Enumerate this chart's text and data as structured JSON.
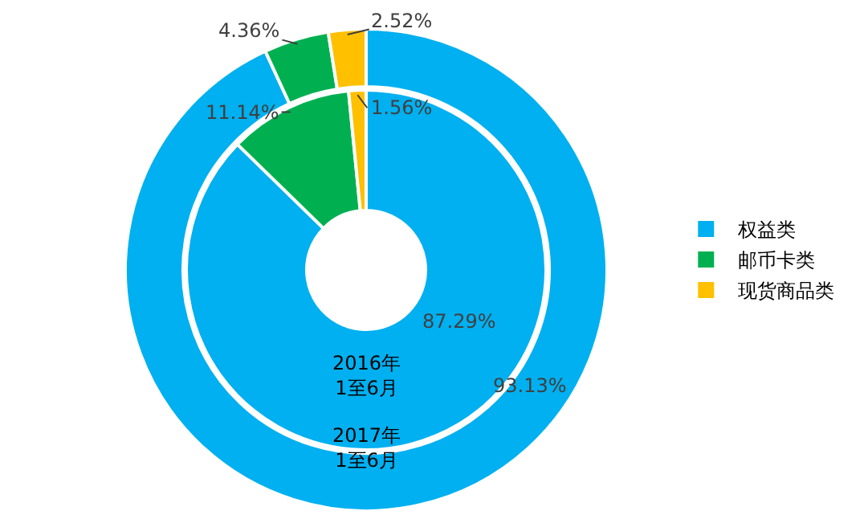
{
  "chart_data": {
    "type": "donut",
    "categories": [
      "权益类",
      "邮币卡类",
      "现货商品类"
    ],
    "colors": [
      "#00b0f0",
      "#00b050",
      "#ffc000"
    ],
    "series": [
      {
        "name": "2016年\n1至6月",
        "values": [
          87.29,
          11.14,
          1.56
        ],
        "value_labels": [
          "87.29%",
          "11.14%",
          "1.56%"
        ]
      },
      {
        "name": "2017年\n1至6月",
        "values": [
          93.13,
          4.36,
          2.52
        ],
        "value_labels": [
          "93.13%",
          "4.36%",
          "2.52%"
        ]
      }
    ],
    "legend": "right"
  }
}
